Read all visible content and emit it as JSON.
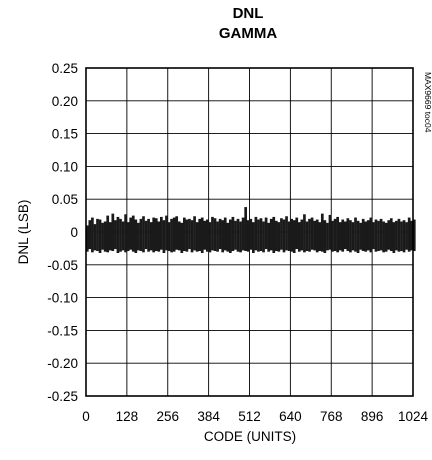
{
  "chart_data": {
    "type": "line",
    "title": "DNL",
    "subtitle": "GAMMA",
    "xlabel": "CODE (UNITS)",
    "ylabel": "DNL (LSB)",
    "figure_ref": "MAX9669 toc04",
    "xlim": [
      0,
      1024
    ],
    "ylim": [
      -0.25,
      0.25
    ],
    "x_ticks": [
      "0",
      "128",
      "256",
      "384",
      "512",
      "640",
      "768",
      "896",
      "1024"
    ],
    "y_ticks": [
      "0.25",
      "0.20",
      "0.15",
      "0.10",
      "0.05",
      "0",
      "-0.05",
      "-0.10",
      "-0.15",
      "-0.20",
      "-0.25"
    ],
    "grid": true,
    "series": [
      {
        "x_start": 0,
        "x_step": 8,
        "upper": [
          0.01,
          0.018,
          0.022,
          0.012,
          0.02,
          0.019,
          0.014,
          0.016,
          0.025,
          0.015,
          0.028,
          0.018,
          0.023,
          0.02,
          0.016,
          0.027,
          0.015,
          0.022,
          0.025,
          0.019,
          0.014,
          0.02,
          0.024,
          0.017,
          0.02,
          0.015,
          0.022,
          0.021,
          0.016,
          0.023,
          0.018,
          0.025,
          0.015,
          0.02,
          0.022,
          0.024,
          0.016,
          0.014,
          0.022,
          0.019,
          0.02,
          0.018,
          0.024,
          0.015,
          0.02,
          0.022,
          0.017,
          0.019,
          0.015,
          0.023,
          0.021,
          0.016,
          0.02,
          0.018,
          0.022,
          0.014,
          0.019,
          0.023,
          0.017,
          0.02,
          0.016,
          0.022,
          0.038,
          0.018,
          0.02,
          0.015,
          0.023,
          0.019,
          0.021,
          0.016,
          0.022,
          0.014,
          0.02,
          0.023,
          0.017,
          0.015,
          0.021,
          0.019,
          0.024,
          0.016,
          0.02,
          0.018,
          0.022,
          0.015,
          0.019,
          0.027,
          0.016,
          0.02,
          0.022,
          0.017,
          0.019,
          0.015,
          0.028,
          0.018,
          0.014,
          0.026,
          0.017,
          0.02,
          0.023,
          0.015,
          0.019,
          0.016,
          0.021,
          0.018,
          0.015,
          0.022,
          0.017,
          0.014,
          0.02,
          0.016,
          0.018,
          0.022,
          0.015,
          0.019,
          0.017,
          0.02,
          0.016,
          0.014,
          0.018,
          0.021,
          0.015,
          0.017,
          0.02,
          0.016,
          0.018,
          0.015,
          0.022,
          0.017,
          0.019
        ],
        "lower": [
          -0.03,
          -0.026,
          -0.031,
          -0.028,
          -0.029,
          -0.032,
          -0.027,
          -0.03,
          -0.031,
          -0.028,
          -0.029,
          -0.026,
          -0.032,
          -0.03,
          -0.028,
          -0.031,
          -0.029,
          -0.027,
          -0.03,
          -0.032,
          -0.028,
          -0.029,
          -0.031,
          -0.026,
          -0.03,
          -0.028,
          -0.031,
          -0.029,
          -0.03,
          -0.027,
          -0.032,
          -0.028,
          -0.029,
          -0.031,
          -0.03,
          -0.027,
          -0.028,
          -0.032,
          -0.029,
          -0.03,
          -0.026,
          -0.031,
          -0.028,
          -0.03,
          -0.029,
          -0.032,
          -0.027,
          -0.03,
          -0.031,
          -0.028,
          -0.029,
          -0.03,
          -0.026,
          -0.031,
          -0.028,
          -0.03,
          -0.032,
          -0.029,
          -0.027,
          -0.03,
          -0.031,
          -0.028,
          -0.029,
          -0.03,
          -0.027,
          -0.032,
          -0.028,
          -0.03,
          -0.029,
          -0.031,
          -0.026,
          -0.03,
          -0.028,
          -0.032,
          -0.029,
          -0.03,
          -0.027,
          -0.031,
          -0.028,
          -0.029,
          -0.03,
          -0.032,
          -0.026,
          -0.03,
          -0.028,
          -0.031,
          -0.029,
          -0.03,
          -0.027,
          -0.028,
          -0.031,
          -0.029,
          -0.03,
          -0.032,
          -0.028,
          -0.027,
          -0.03,
          -0.029,
          -0.031,
          -0.028,
          -0.03,
          -0.026,
          -0.029,
          -0.031,
          -0.028,
          -0.03,
          -0.032,
          -0.027,
          -0.029,
          -0.03,
          -0.028,
          -0.031,
          -0.026,
          -0.03,
          -0.029,
          -0.028,
          -0.031,
          -0.03,
          -0.027,
          -0.029,
          -0.032,
          -0.028,
          -0.03,
          -0.029,
          -0.031,
          -0.027,
          -0.03,
          -0.028,
          -0.029
        ]
      }
    ]
  },
  "colors": {
    "line": "#1a1a1a",
    "axes": "#000000",
    "grid": "#000000"
  }
}
